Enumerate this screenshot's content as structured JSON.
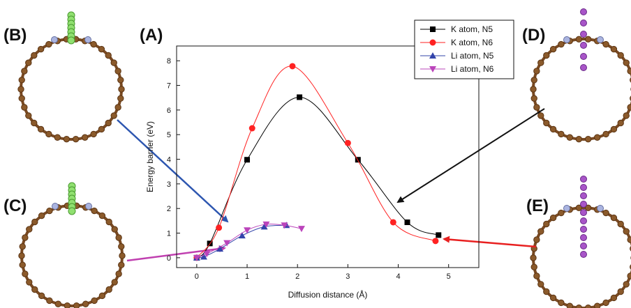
{
  "panel_labels": {
    "a": "(A)",
    "b": "(B)",
    "c": "(C)",
    "d": "(D)",
    "e": "(E)"
  },
  "chart_data": {
    "type": "line",
    "xlabel": "Diffusion distance (Å)",
    "ylabel": "Energy barrier (eV)",
    "xlim": [
      -0.4,
      5.6
    ],
    "ylim": [
      -0.4,
      8.6
    ],
    "xticks": [
      0,
      1,
      2,
      3,
      4,
      5
    ],
    "yticks": [
      0,
      1,
      2,
      3,
      4,
      5,
      6,
      7,
      8
    ],
    "grid": false,
    "legend_position": "top-right",
    "series": [
      {
        "name": "K atom, N5",
        "color": "#000000",
        "marker": "square",
        "x": [
          0,
          0.26,
          1.0,
          2.04,
          3.2,
          4.18,
          4.8
        ],
        "y": [
          0,
          0.58,
          3.98,
          6.52,
          3.98,
          1.44,
          0.92
        ]
      },
      {
        "name": "K atom, N6",
        "color": "#ff2222",
        "marker": "circle",
        "x": [
          0,
          0.44,
          1.1,
          1.9,
          3.0,
          3.9,
          4.74
        ],
        "y": [
          0,
          1.22,
          5.26,
          7.78,
          4.66,
          1.44,
          0.68
        ]
      },
      {
        "name": "Li atom, N5",
        "color": "#3344aa",
        "marker": "triangle-up",
        "x": [
          0,
          0.14,
          0.46,
          0.9,
          1.34,
          1.78
        ],
        "y": [
          0,
          0.04,
          0.36,
          0.9,
          1.26,
          1.32
        ]
      },
      {
        "name": "Li atom, N6",
        "color": "#bb44bb",
        "marker": "triangle-down",
        "x": [
          0,
          0.2,
          0.6,
          1.0,
          1.38,
          1.74,
          2.08
        ],
        "y": [
          0,
          0.16,
          0.6,
          1.12,
          1.36,
          1.32,
          1.18
        ]
      }
    ]
  }
}
